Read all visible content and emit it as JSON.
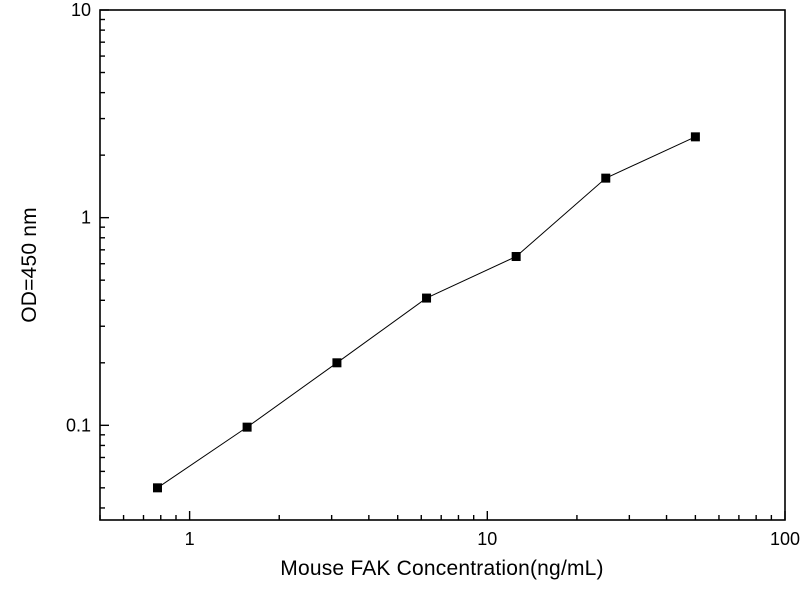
{
  "chart_data": {
    "type": "line",
    "title": "",
    "xlabel": "Mouse FAK Concentration(ng/mL)",
    "ylabel": "OD=450 nm",
    "xscale": "log",
    "yscale": "log",
    "xlim": [
      0.5,
      100
    ],
    "ylim": [
      0.035,
      10
    ],
    "x_major_ticks": [
      1,
      10,
      100
    ],
    "y_major_ticks": [
      0.1,
      1,
      10
    ],
    "x": [
      0.78,
      1.56,
      3.125,
      6.25,
      12.5,
      25,
      50
    ],
    "y": [
      0.05,
      0.098,
      0.2,
      0.41,
      0.65,
      1.55,
      2.45
    ],
    "marker": "square",
    "line_color": "#000000",
    "marker_color": "#000000",
    "frame_color": "#000000",
    "background_color": "#ffffff",
    "grid": false,
    "legend": false
  }
}
